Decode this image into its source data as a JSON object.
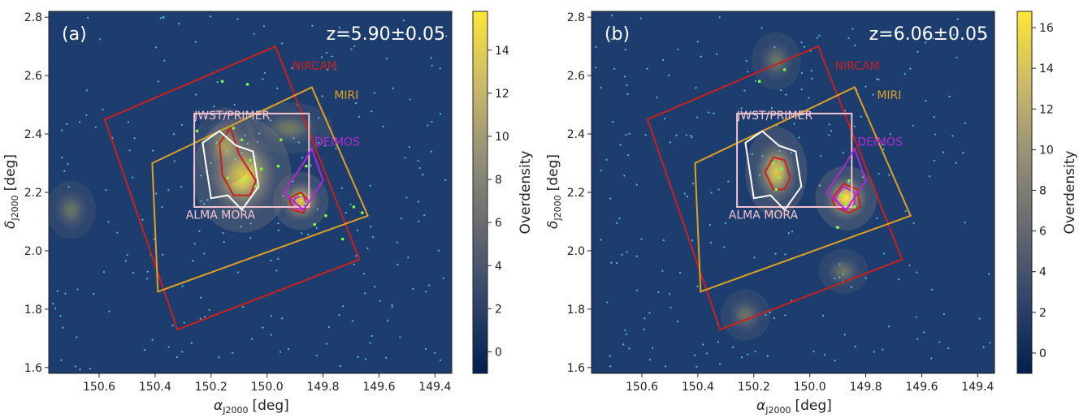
{
  "chart_data": [
    {
      "type": "scatter",
      "panel_label": "(a)",
      "redshift_label": "z=5.90±0.05",
      "xlabel_sym": "α",
      "xlabel_sub": "J2000",
      "xlabel_unit": "[deg]",
      "ylabel_sym": "δ",
      "ylabel_sub": "J2000",
      "ylabel_unit": "[deg]",
      "xlim": [
        150.78,
        149.34
      ],
      "ylim": [
        1.58,
        2.82
      ],
      "xticks": [
        150.6,
        150.4,
        150.2,
        150.0,
        149.8,
        149.6,
        149.4
      ],
      "xtick_labels": [
        "150.6",
        "150.4",
        "150.2",
        "150.0",
        "149.8",
        "149.6",
        "149.4"
      ],
      "yticks": [
        1.6,
        1.8,
        2.0,
        2.2,
        2.4,
        2.6,
        2.8
      ],
      "ytick_labels": [
        "1.6",
        "1.8",
        "2.0",
        "2.2",
        "2.4",
        "2.6",
        "2.8"
      ],
      "background_color": "#1d3d6e",
      "colorbar": {
        "label": "Overdensity",
        "range": [
          -1,
          15.8
        ],
        "ticks": [
          0,
          2,
          4,
          6,
          8,
          10,
          12,
          14
        ],
        "tick_labels": [
          "0",
          "2",
          "4",
          "6",
          "8",
          "10",
          "12",
          "14"
        ]
      },
      "footprints": [
        {
          "name": "NIRCAM",
          "color": "#cc1f1a",
          "label_at": [
            149.91,
            2.62
          ],
          "corners": [
            [
              150.58,
              2.45
            ],
            [
              149.97,
              2.7
            ],
            [
              149.67,
              1.97
            ],
            [
              150.32,
              1.73
            ]
          ]
        },
        {
          "name": "MIRI",
          "color": "#e0a020",
          "label_at": [
            149.76,
            2.52
          ],
          "corners": [
            [
              150.41,
              2.3
            ],
            [
              149.84,
              2.56
            ],
            [
              149.64,
              2.12
            ],
            [
              150.39,
              1.86
            ]
          ]
        },
        {
          "name": "JWST/PRIMER",
          "color": "#f4c3d0",
          "label_at": [
            150.26,
            2.45
          ],
          "corners": [
            [
              150.26,
              2.47
            ],
            [
              149.85,
              2.47
            ],
            [
              149.85,
              2.15
            ],
            [
              150.26,
              2.15
            ]
          ]
        },
        {
          "name": "ALMA MORA",
          "color": "#ffffff",
          "label_at": [
            150.29,
            2.11
          ],
          "label_color": "#f4c3d0",
          "corners": [
            [
              150.23,
              2.37
            ],
            [
              150.17,
              2.41
            ],
            [
              150.11,
              2.36
            ],
            [
              150.05,
              2.34
            ],
            [
              150.03,
              2.22
            ],
            [
              150.09,
              2.14
            ],
            [
              150.14,
              2.19
            ],
            [
              150.2,
              2.18
            ]
          ]
        },
        {
          "name": "DEIMOS",
          "color": "#b428d2",
          "label_at": [
            149.83,
            2.36
          ],
          "corners": [
            [
              149.94,
              2.2
            ],
            [
              149.87,
              2.14
            ],
            [
              149.8,
              2.24
            ],
            [
              149.84,
              2.35
            ],
            [
              149.87,
              2.3
            ]
          ]
        }
      ],
      "density_peaks": [
        {
          "x": 150.09,
          "y": 2.26,
          "sx": 0.08,
          "sy": 0.09,
          "amp": 1.0
        },
        {
          "x": 149.88,
          "y": 2.17,
          "sx": 0.045,
          "sy": 0.045,
          "amp": 0.85
        },
        {
          "x": 149.92,
          "y": 2.42,
          "sx": 0.07,
          "sy": 0.04,
          "amp": 0.35
        },
        {
          "x": 150.7,
          "y": 2.14,
          "sx": 0.04,
          "sy": 0.045,
          "amp": 0.3
        },
        {
          "x": 150.15,
          "y": 2.36,
          "sx": 0.05,
          "sy": 0.06,
          "amp": 0.5
        }
      ],
      "contours": [
        {
          "color": "#cc1f1a",
          "points": [
            [
              150.17,
              2.37
            ],
            [
              150.13,
              2.42
            ],
            [
              150.1,
              2.33
            ],
            [
              150.04,
              2.24
            ],
            [
              150.06,
              2.19
            ],
            [
              150.12,
              2.19
            ],
            [
              150.16,
              2.26
            ]
          ]
        },
        {
          "color": "#b428d2",
          "points": [
            [
              149.9,
              2.18
            ],
            [
              149.87,
              2.19
            ],
            [
              149.86,
              2.16
            ],
            [
              149.88,
              2.14
            ],
            [
              149.91,
              2.15
            ]
          ]
        },
        {
          "color": "#cc1f1a",
          "points": [
            [
              149.92,
              2.18
            ],
            [
              149.88,
              2.2
            ],
            [
              149.85,
              2.17
            ],
            [
              149.87,
              2.13
            ],
            [
              149.91,
              2.14
            ]
          ]
        }
      ],
      "members": [
        [
          150.12,
          2.42
        ],
        [
          150.09,
          2.38
        ],
        [
          150.06,
          2.31
        ],
        [
          150.02,
          2.28
        ],
        [
          150.14,
          2.25
        ],
        [
          150.08,
          2.24
        ],
        [
          150.04,
          2.22
        ],
        [
          149.96,
          2.29
        ],
        [
          150.25,
          2.41
        ],
        [
          150.07,
          2.57
        ],
        [
          150.16,
          2.58
        ],
        [
          149.95,
          2.38
        ],
        [
          149.88,
          2.19
        ],
        [
          149.86,
          2.16
        ],
        [
          149.86,
          2.29
        ],
        [
          149.69,
          2.15
        ],
        [
          149.73,
          2.04
        ],
        [
          149.83,
          2.09
        ],
        [
          149.66,
          2.13
        ],
        [
          149.79,
          2.12
        ]
      ],
      "field_seed": 11,
      "field_count": 230
    },
    {
      "type": "scatter",
      "panel_label": "(b)",
      "redshift_label": "z=6.06±0.05",
      "xlabel_sym": "α",
      "xlabel_sub": "J2000",
      "xlabel_unit": "[deg]",
      "ylabel_sym": "δ",
      "ylabel_sub": "J2000",
      "ylabel_unit": "[deg]",
      "xlim": [
        150.78,
        149.34
      ],
      "ylim": [
        1.58,
        2.82
      ],
      "xticks": [
        150.6,
        150.4,
        150.2,
        150.0,
        149.8,
        149.6,
        149.4
      ],
      "xtick_labels": [
        "150.6",
        "150.4",
        "150.2",
        "150.0",
        "149.8",
        "149.6",
        "149.4"
      ],
      "yticks": [
        1.6,
        1.8,
        2.0,
        2.2,
        2.4,
        2.6,
        2.8
      ],
      "ytick_labels": [
        "1.6",
        "1.8",
        "2.0",
        "2.2",
        "2.4",
        "2.6",
        "2.8"
      ],
      "background_color": "#1d3d6e",
      "colorbar": {
        "label": "Overdensity",
        "range": [
          -1,
          16.8
        ],
        "ticks": [
          0,
          2,
          4,
          6,
          8,
          10,
          12,
          14,
          16
        ],
        "tick_labels": [
          "0",
          "2",
          "4",
          "6",
          "8",
          "10",
          "12",
          "14",
          "16"
        ]
      },
      "footprints": [
        {
          "name": "NIRCAM",
          "color": "#cc1f1a",
          "label_at": [
            149.91,
            2.62
          ],
          "corners": [
            [
              150.58,
              2.45
            ],
            [
              149.97,
              2.7
            ],
            [
              149.67,
              1.97
            ],
            [
              150.32,
              1.73
            ]
          ]
        },
        {
          "name": "MIRI",
          "color": "#e0a020",
          "label_at": [
            149.76,
            2.52
          ],
          "corners": [
            [
              150.41,
              2.3
            ],
            [
              149.84,
              2.56
            ],
            [
              149.64,
              2.12
            ],
            [
              150.39,
              1.86
            ]
          ]
        },
        {
          "name": "JWST/PRIMER",
          "color": "#f4c3d0",
          "label_at": [
            150.26,
            2.45
          ],
          "corners": [
            [
              150.26,
              2.47
            ],
            [
              149.85,
              2.47
            ],
            [
              149.85,
              2.15
            ],
            [
              150.26,
              2.15
            ]
          ]
        },
        {
          "name": "ALMA MORA",
          "color": "#ffffff",
          "label_at": [
            150.29,
            2.11
          ],
          "label_color": "#f4c3d0",
          "corners": [
            [
              150.23,
              2.37
            ],
            [
              150.17,
              2.41
            ],
            [
              150.11,
              2.36
            ],
            [
              150.05,
              2.34
            ],
            [
              150.03,
              2.22
            ],
            [
              150.09,
              2.14
            ],
            [
              150.14,
              2.19
            ],
            [
              150.2,
              2.18
            ]
          ]
        },
        {
          "name": "DEIMOS",
          "color": "#b428d2",
          "label_at": [
            149.83,
            2.36
          ],
          "corners": [
            [
              149.94,
              2.2
            ],
            [
              149.87,
              2.14
            ],
            [
              149.8,
              2.24
            ],
            [
              149.84,
              2.35
            ],
            [
              149.87,
              2.3
            ]
          ]
        }
      ],
      "density_peaks": [
        {
          "x": 150.12,
          "y": 2.27,
          "sx": 0.05,
          "sy": 0.07,
          "amp": 0.85
        },
        {
          "x": 149.87,
          "y": 2.18,
          "sx": 0.05,
          "sy": 0.05,
          "amp": 1.0
        },
        {
          "x": 150.12,
          "y": 2.65,
          "sx": 0.04,
          "sy": 0.045,
          "amp": 0.3
        },
        {
          "x": 149.88,
          "y": 1.93,
          "sx": 0.04,
          "sy": 0.035,
          "amp": 0.3
        },
        {
          "x": 150.23,
          "y": 1.78,
          "sx": 0.04,
          "sy": 0.04,
          "amp": 0.3
        }
      ],
      "contours": [
        {
          "color": "#cc1f1a",
          "points": [
            [
              150.16,
              2.27
            ],
            [
              150.13,
              2.32
            ],
            [
              150.09,
              2.31
            ],
            [
              150.07,
              2.25
            ],
            [
              150.09,
              2.21
            ],
            [
              150.13,
              2.21
            ]
          ]
        },
        {
          "color": "#cc1f1a",
          "points": [
            [
              149.92,
              2.18
            ],
            [
              149.88,
              2.23
            ],
            [
              149.83,
              2.21
            ],
            [
              149.82,
              2.15
            ],
            [
              149.86,
              2.13
            ],
            [
              149.91,
              2.15
            ]
          ]
        },
        {
          "color": "#b428d2",
          "points": [
            [
              149.91,
              2.18
            ],
            [
              149.88,
              2.22
            ],
            [
              149.84,
              2.2
            ],
            [
              149.84,
              2.16
            ],
            [
              149.88,
              2.14
            ]
          ]
        }
      ],
      "members": [
        [
          150.13,
          2.3
        ],
        [
          150.11,
          2.25
        ],
        [
          150.12,
          2.21
        ],
        [
          150.1,
          2.28
        ],
        [
          149.89,
          2.19
        ],
        [
          149.87,
          2.16
        ],
        [
          149.85,
          2.18
        ],
        [
          149.84,
          2.15
        ],
        [
          150.09,
          2.62
        ],
        [
          150.18,
          2.58
        ],
        [
          149.9,
          2.08
        ],
        [
          149.86,
          2.24
        ]
      ],
      "field_seed": 23,
      "field_count": 230
    }
  ]
}
